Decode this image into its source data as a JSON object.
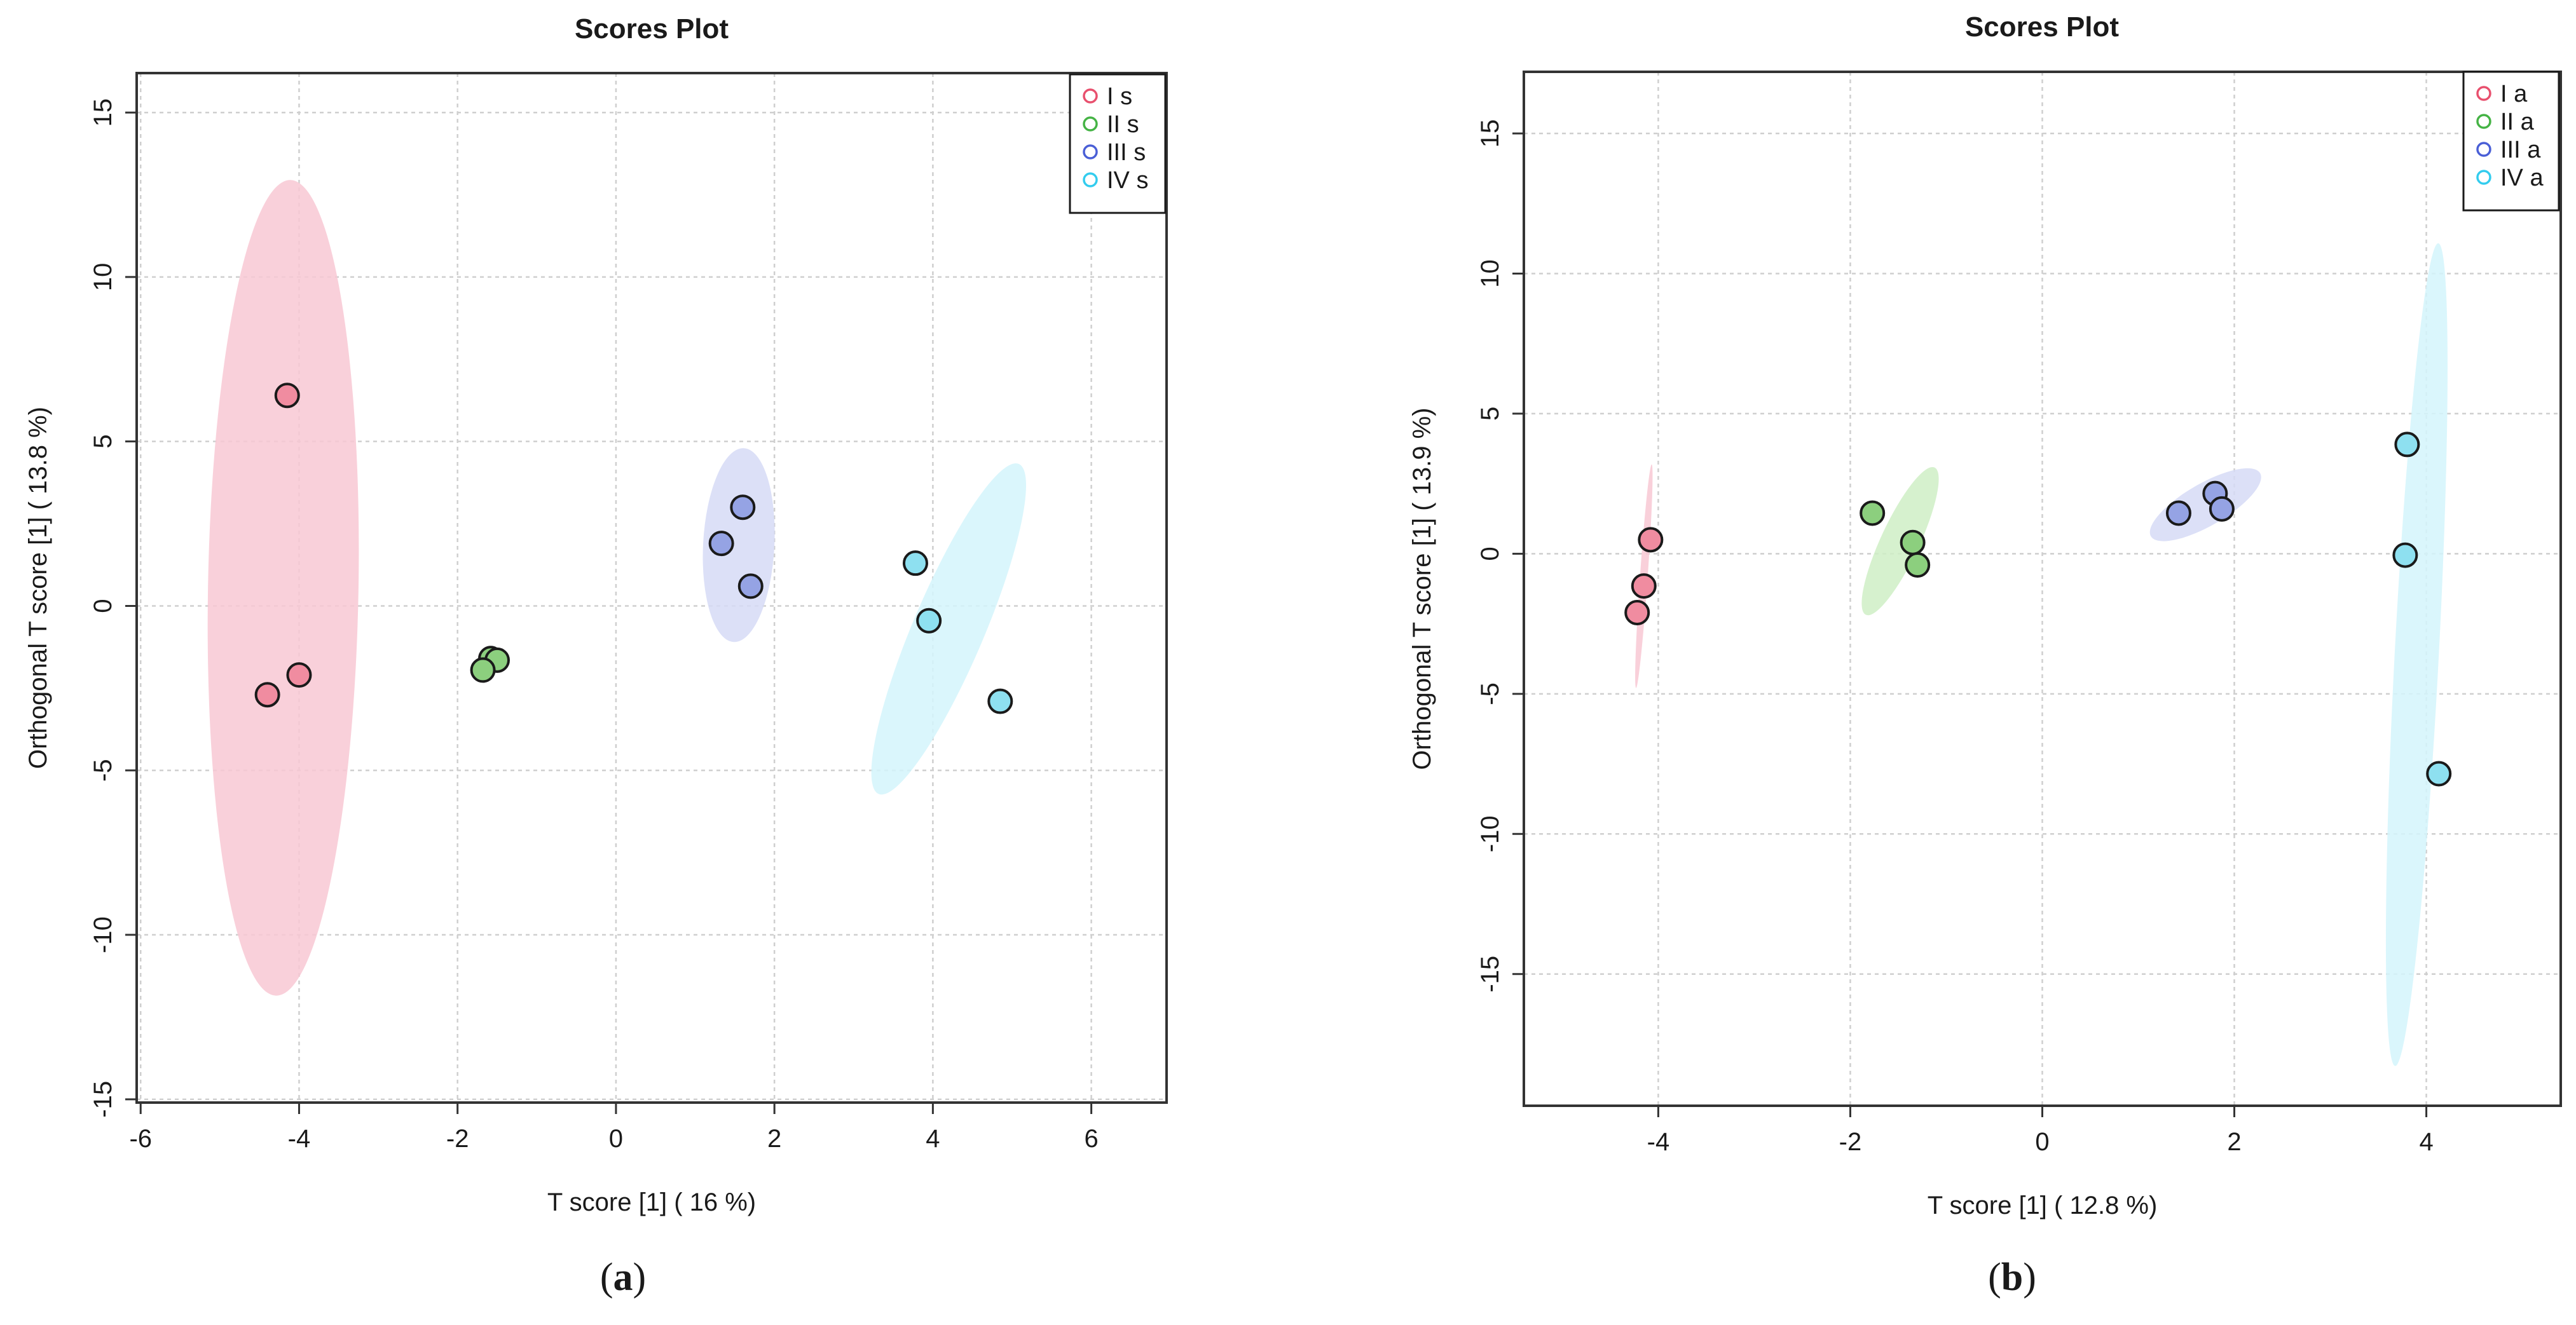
{
  "chart_data": [
    {
      "type": "scatter",
      "title": "Scores Plot",
      "xlabel": "T score [1] ( 16 %)",
      "ylabel": "Orthogonal T score [1] ( 13.8 %)",
      "xlim": [
        -6.05,
        6.95
      ],
      "ylim": [
        -15.1,
        16.2
      ],
      "xticks": [
        -6,
        -4,
        -2,
        0,
        2,
        4,
        6
      ],
      "yticks": [
        -15,
        -10,
        -5,
        0,
        5,
        10,
        15
      ],
      "grid": true,
      "legend_position": "top-right",
      "panel_label": "(a)",
      "series": [
        {
          "name": "I s",
          "color": "#e8506e",
          "fill": "#f08ca0",
          "ellipse_color": "#f8c8d3",
          "points": [
            [
              -4.15,
              6.4
            ],
            [
              -4.0,
              -2.1
            ],
            [
              -4.4,
              -2.7
            ]
          ],
          "ellipse": {
            "cx": -4.2,
            "cy": 0.55,
            "rx": 0.95,
            "ry": 12.4,
            "angle": 1.0
          }
        },
        {
          "name": "II s",
          "color": "#45b345",
          "fill": "#8ccf7e",
          "ellipse_color": "#cfeec6",
          "points": [
            [
              -1.58,
              -1.6
            ],
            [
              -1.5,
              -1.65
            ],
            [
              -1.68,
              -1.95
            ]
          ],
          "ellipse": null
        },
        {
          "name": "III s",
          "color": "#4a5fd6",
          "fill": "#95a3e4",
          "ellipse_color": "#d6dbf6",
          "points": [
            [
              1.6,
              3.0
            ],
            [
              1.33,
              1.9
            ],
            [
              1.7,
              0.6
            ]
          ],
          "ellipse": {
            "cx": 1.55,
            "cy": 1.85,
            "rx": 0.45,
            "ry": 2.95,
            "angle": 3.0
          }
        },
        {
          "name": "IV s",
          "color": "#33ccee",
          "fill": "#8ee0f0",
          "ellipse_color": "#d4f5fb",
          "points": [
            [
              3.78,
              1.3
            ],
            [
              3.95,
              -0.45
            ],
            [
              4.85,
              -2.9
            ]
          ],
          "ellipse": {
            "cx": 4.2,
            "cy": -0.7,
            "rx": 0.45,
            "ry": 5.45,
            "angle": 23.0
          }
        }
      ]
    },
    {
      "type": "scatter",
      "title": "Scores Plot",
      "xlabel": "T score [1] ( 12.8 %)",
      "ylabel": "Orthogonal T score [1] ( 13.9 %)",
      "xlim": [
        -5.4,
        5.4
      ],
      "ylim": [
        -19.7,
        17.2
      ],
      "xticks": [
        -4,
        -2,
        0,
        2,
        4
      ],
      "yticks": [
        -15,
        -10,
        -5,
        0,
        5,
        10,
        15
      ],
      "grid": true,
      "legend_position": "top-right",
      "panel_label": "(b)",
      "series": [
        {
          "name": "I a",
          "color": "#e8506e",
          "fill": "#f08ca0",
          "ellipse_color": "#f8c8d3",
          "points": [
            [
              -4.08,
              0.5
            ],
            [
              -4.15,
              -1.15
            ],
            [
              -4.22,
              -2.1
            ]
          ],
          "ellipse": {
            "cx": -4.15,
            "cy": -0.8,
            "rx": 0.04,
            "ry": 4.0,
            "angle": 4.0
          }
        },
        {
          "name": "II a",
          "color": "#45b345",
          "fill": "#8ccf7e",
          "ellipse_color": "#cfeec6",
          "points": [
            [
              -1.77,
              1.45
            ],
            [
              -1.35,
              0.4
            ],
            [
              -1.3,
              -0.4
            ]
          ],
          "ellipse": {
            "cx": -1.48,
            "cy": 0.45,
            "rx": 0.2,
            "ry": 2.9,
            "angle": 25.0
          }
        },
        {
          "name": "III a",
          "color": "#4a5fd6",
          "fill": "#95a3e4",
          "ellipse_color": "#d6dbf6",
          "points": [
            [
              1.8,
              2.15
            ],
            [
              1.42,
              1.45
            ],
            [
              1.87,
              1.6
            ]
          ],
          "ellipse": {
            "cx": 1.7,
            "cy": 1.75,
            "rx": 0.22,
            "ry": 2.25,
            "angle": 60.0
          }
        },
        {
          "name": "IV a",
          "color": "#33ccee",
          "fill": "#8ee0f0",
          "ellipse_color": "#d4f5fb",
          "points": [
            [
              3.8,
              3.9
            ],
            [
              3.78,
              -0.05
            ],
            [
              4.13,
              -7.85
            ]
          ],
          "ellipse": {
            "cx": 3.9,
            "cy": -3.6,
            "rx": 0.23,
            "ry": 14.7,
            "angle": 3.0
          }
        }
      ]
    }
  ]
}
